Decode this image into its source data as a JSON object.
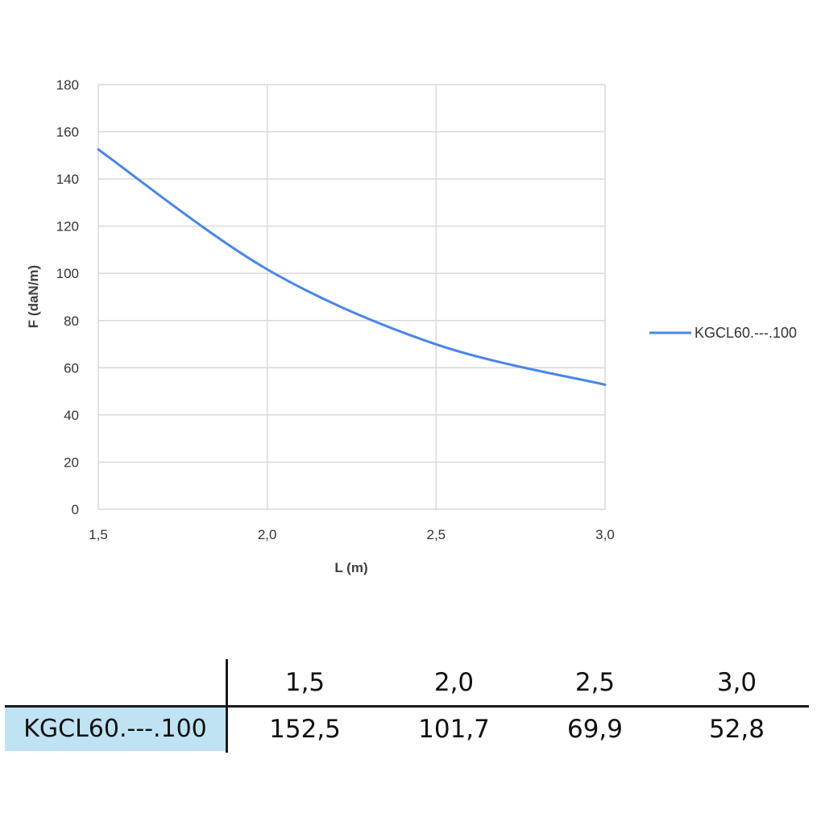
{
  "chart_data": {
    "type": "line",
    "x": [
      1.5,
      2.0,
      2.5,
      3.0
    ],
    "x_tick_labels": [
      "1,5",
      "2,0",
      "2,5",
      "3,0"
    ],
    "xlim": [
      1.5,
      3.0
    ],
    "ylim": [
      0,
      180
    ],
    "y_ticks": [
      0,
      20,
      40,
      60,
      80,
      100,
      120,
      140,
      160,
      180
    ],
    "y_tick_labels": [
      "0",
      "20",
      "40",
      "60",
      "80",
      "100",
      "120",
      "140",
      "160",
      "180"
    ],
    "xlabel": "L (m)",
    "ylabel": "F (daN/m)",
    "grid": true,
    "legend_position": "right",
    "series": [
      {
        "name": "KGCL60.---.100",
        "color": "#4a86e8",
        "values": [
          152.5,
          101.7,
          69.9,
          52.8
        ]
      }
    ]
  },
  "table": {
    "header": [
      "1,5",
      "2,0",
      "2,5",
      "3,0"
    ],
    "row_label": "KGCL60.---.100",
    "row_values": [
      "152,5",
      "101,7",
      "69,9",
      "52,8"
    ]
  }
}
